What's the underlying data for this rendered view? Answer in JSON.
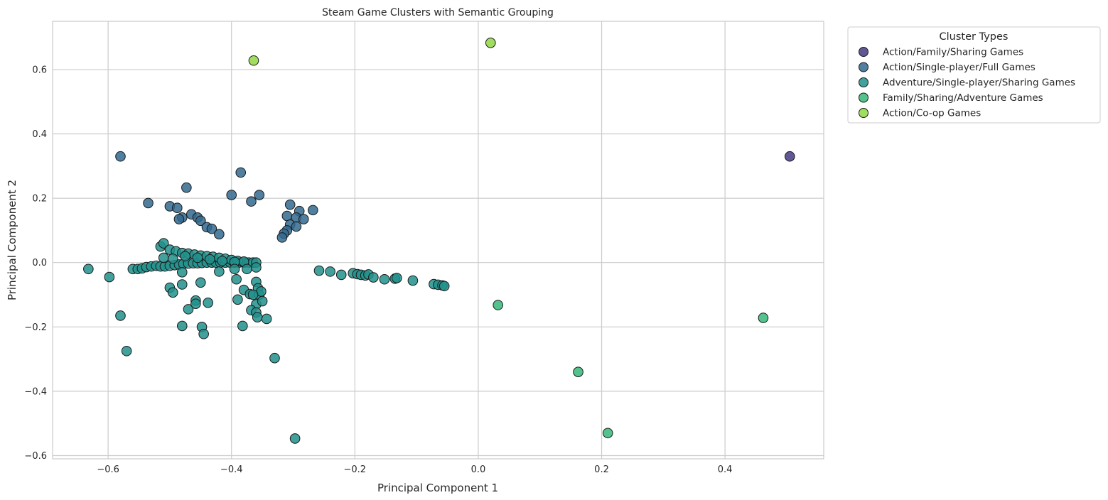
{
  "chart_data": {
    "type": "scatter",
    "title": "Steam Game Clusters with Semantic Grouping",
    "xlabel": "Principal Component 1",
    "ylabel": "Principal Component 2",
    "xlim": [
      -0.69,
      0.56
    ],
    "ylim": [
      -0.61,
      0.75
    ],
    "xticks": [
      -0.6,
      -0.4,
      -0.2,
      0.0,
      0.2,
      0.4
    ],
    "xtick_labels": [
      "−0.6",
      "−0.4",
      "−0.2",
      "0.0",
      "0.2",
      "0.4"
    ],
    "yticks": [
      -0.6,
      -0.4,
      -0.2,
      0.0,
      0.2,
      0.4,
      0.6
    ],
    "ytick_labels": [
      "−0.6",
      "−0.4",
      "−0.2",
      "0.0",
      "0.2",
      "0.4",
      "0.6"
    ],
    "grid": true,
    "legend": {
      "title": "Cluster Types",
      "placement": "outside upper right"
    },
    "series": [
      {
        "name": "Action/Family/Sharing Games",
        "color": "#443983",
        "points": [
          [
            0.505,
            0.33
          ]
        ]
      },
      {
        "name": "Action/Single-player/Full Games",
        "color": "#31688e",
        "points": [
          [
            -0.58,
            0.33
          ],
          [
            -0.385,
            0.28
          ],
          [
            -0.473,
            0.233
          ],
          [
            -0.4,
            0.21
          ],
          [
            -0.355,
            0.21
          ],
          [
            -0.535,
            0.185
          ],
          [
            -0.368,
            0.19
          ],
          [
            -0.5,
            0.175
          ],
          [
            -0.488,
            0.17
          ],
          [
            -0.465,
            0.15
          ],
          [
            -0.455,
            0.14
          ],
          [
            -0.48,
            0.14
          ],
          [
            -0.45,
            0.13
          ],
          [
            -0.485,
            0.135
          ],
          [
            -0.44,
            0.11
          ],
          [
            -0.432,
            0.105
          ],
          [
            -0.42,
            0.088
          ],
          [
            -0.305,
            0.18
          ],
          [
            -0.268,
            0.163
          ],
          [
            -0.29,
            0.16
          ],
          [
            -0.31,
            0.145
          ],
          [
            -0.295,
            0.14
          ],
          [
            -0.283,
            0.135
          ],
          [
            -0.305,
            0.118
          ],
          [
            -0.295,
            0.112
          ],
          [
            -0.31,
            0.1
          ],
          [
            -0.315,
            0.09
          ],
          [
            -0.318,
            0.078
          ]
        ]
      },
      {
        "name": "Adventure/Single-player/Sharing Games",
        "color": "#21918c",
        "points": [
          [
            -0.632,
            -0.02
          ],
          [
            -0.598,
            -0.045
          ],
          [
            -0.58,
            -0.165
          ],
          [
            -0.57,
            -0.275
          ],
          [
            -0.56,
            -0.02
          ],
          [
            -0.552,
            -0.02
          ],
          [
            -0.545,
            -0.018
          ],
          [
            -0.538,
            -0.014
          ],
          [
            -0.53,
            -0.012
          ],
          [
            -0.522,
            -0.01
          ],
          [
            -0.515,
            -0.012
          ],
          [
            -0.508,
            -0.012
          ],
          [
            -0.5,
            -0.01
          ],
          [
            -0.492,
            -0.008
          ],
          [
            -0.485,
            -0.006
          ],
          [
            -0.478,
            -0.004
          ],
          [
            -0.47,
            -0.003
          ],
          [
            -0.462,
            -0.002
          ],
          [
            -0.455,
            -0.002
          ],
          [
            -0.448,
            -0.001
          ],
          [
            -0.44,
            0.0
          ],
          [
            -0.432,
            0.0
          ],
          [
            -0.425,
            0.0
          ],
          [
            -0.418,
            0.0
          ],
          [
            -0.41,
            0.0
          ],
          [
            -0.402,
            0.0
          ],
          [
            -0.395,
            0.0
          ],
          [
            -0.388,
            0.0
          ],
          [
            -0.38,
            0.0
          ],
          [
            -0.372,
            0.0
          ],
          [
            -0.365,
            0.0
          ],
          [
            -0.36,
            0.0
          ],
          [
            -0.515,
            0.05
          ],
          [
            -0.51,
            0.06
          ],
          [
            -0.5,
            0.04
          ],
          [
            -0.49,
            0.035
          ],
          [
            -0.48,
            0.03
          ],
          [
            -0.47,
            0.028
          ],
          [
            -0.46,
            0.025
          ],
          [
            -0.45,
            0.022
          ],
          [
            -0.44,
            0.02
          ],
          [
            -0.43,
            0.018
          ],
          [
            -0.42,
            0.015
          ],
          [
            -0.41,
            0.012
          ],
          [
            -0.4,
            0.008
          ],
          [
            -0.39,
            0.005
          ],
          [
            -0.38,
            0.003
          ],
          [
            -0.51,
            0.015
          ],
          [
            -0.495,
            0.012
          ],
          [
            -0.475,
            0.02
          ],
          [
            -0.455,
            0.015
          ],
          [
            -0.435,
            0.01
          ],
          [
            -0.415,
            0.005
          ],
          [
            -0.395,
            0.002
          ],
          [
            -0.48,
            -0.03
          ],
          [
            -0.42,
            -0.028
          ],
          [
            -0.395,
            -0.02
          ],
          [
            -0.375,
            -0.02
          ],
          [
            -0.36,
            -0.015
          ],
          [
            -0.392,
            -0.052
          ],
          [
            -0.45,
            -0.062
          ],
          [
            -0.48,
            -0.068
          ],
          [
            -0.5,
            -0.078
          ],
          [
            -0.495,
            -0.093
          ],
          [
            -0.38,
            -0.085
          ],
          [
            -0.37,
            -0.098
          ],
          [
            -0.36,
            -0.06
          ],
          [
            -0.357,
            -0.08
          ],
          [
            -0.355,
            -0.1
          ],
          [
            -0.352,
            -0.09
          ],
          [
            -0.365,
            -0.1
          ],
          [
            -0.36,
            -0.13
          ],
          [
            -0.368,
            -0.148
          ],
          [
            -0.35,
            -0.12
          ],
          [
            -0.36,
            -0.155
          ],
          [
            -0.358,
            -0.17
          ],
          [
            -0.343,
            -0.175
          ],
          [
            -0.39,
            -0.115
          ],
          [
            -0.458,
            -0.118
          ],
          [
            -0.47,
            -0.145
          ],
          [
            -0.458,
            -0.128
          ],
          [
            -0.438,
            -0.125
          ],
          [
            -0.48,
            -0.197
          ],
          [
            -0.448,
            -0.2
          ],
          [
            -0.445,
            -0.222
          ],
          [
            -0.382,
            -0.197
          ],
          [
            -0.33,
            -0.297
          ],
          [
            -0.297,
            -0.547
          ],
          [
            -0.258,
            -0.025
          ],
          [
            -0.24,
            -0.028
          ],
          [
            -0.222,
            -0.038
          ],
          [
            -0.203,
            -0.033
          ],
          [
            -0.196,
            -0.036
          ],
          [
            -0.19,
            -0.038
          ],
          [
            -0.183,
            -0.04
          ],
          [
            -0.178,
            -0.037
          ],
          [
            -0.17,
            -0.046
          ],
          [
            -0.152,
            -0.052
          ],
          [
            -0.135,
            -0.05
          ],
          [
            -0.132,
            -0.048
          ],
          [
            -0.106,
            -0.056
          ],
          [
            -0.072,
            -0.067
          ],
          [
            -0.065,
            -0.069
          ],
          [
            -0.058,
            -0.071
          ],
          [
            -0.055,
            -0.073
          ]
        ]
      },
      {
        "name": "Family/Sharing/Adventure Games",
        "color": "#35b779",
        "points": [
          [
            0.032,
            -0.132
          ],
          [
            0.162,
            -0.34
          ],
          [
            0.21,
            -0.53
          ],
          [
            0.462,
            -0.172
          ]
        ]
      },
      {
        "name": "Action/Co-op Games",
        "color": "#90d743",
        "points": [
          [
            -0.364,
            0.628
          ],
          [
            0.02,
            0.683
          ]
        ]
      }
    ]
  }
}
